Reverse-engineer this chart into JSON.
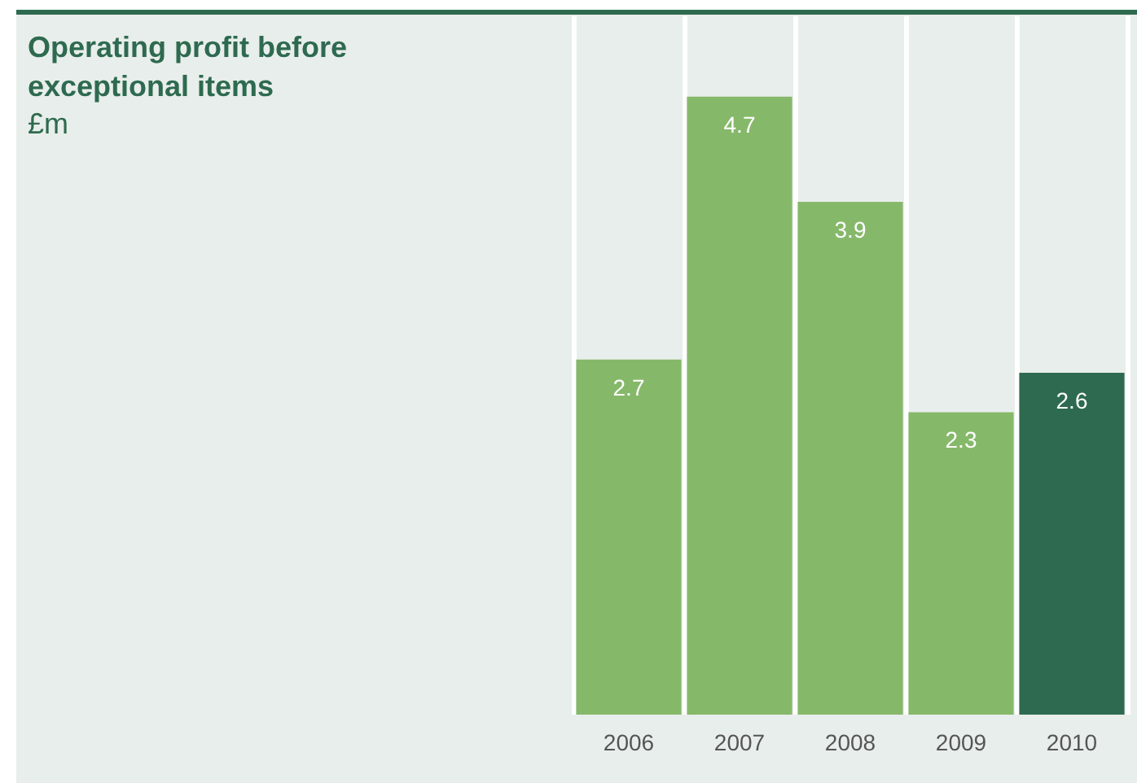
{
  "chart_data": {
    "type": "bar",
    "title": "Operating profit before exceptional items",
    "subtitle": "£m",
    "categories": [
      "2006",
      "2007",
      "2008",
      "2009",
      "2010"
    ],
    "values": [
      2.7,
      4.7,
      3.9,
      2.3,
      2.6
    ],
    "colors": [
      "#86b86a",
      "#86b86a",
      "#86b86a",
      "#86b86a",
      "#2e6a4f"
    ],
    "data_labels": true,
    "grid": "x"
  }
}
